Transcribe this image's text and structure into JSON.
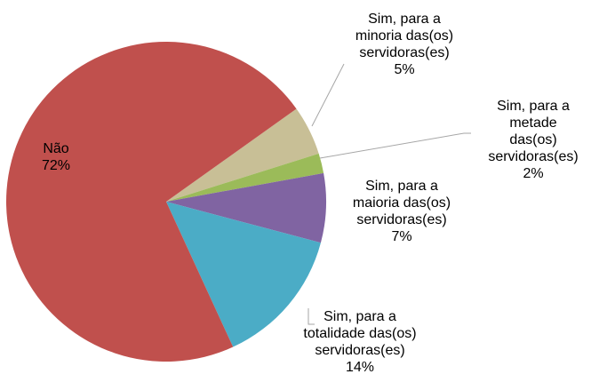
{
  "chart_data": {
    "type": "pie",
    "categories": [
      "Sim, para a minoria das(os) servidoras(es)",
      "Sim, para a metade das(os) servidoras(es)",
      "Sim, para a maioria das(os) servidoras(es)",
      "Sim, para a totalidade das(os) servidoras(es)",
      "Não"
    ],
    "values": [
      5,
      2,
      7,
      14,
      72
    ],
    "value_labels": [
      "5%",
      "2%",
      "7%",
      "14%",
      "72%"
    ],
    "colors": [
      "#c8bf96",
      "#9bbb59",
      "#8064a2",
      "#4bacc6",
      "#c0504d"
    ]
  }
}
